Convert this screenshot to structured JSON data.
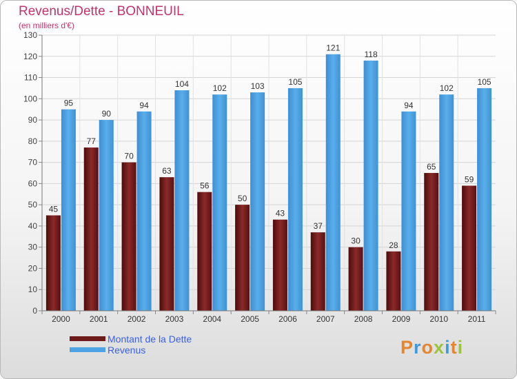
{
  "title": "Revenus/Dette - BONNEUIL",
  "subtitle": "(en milliers d'€)",
  "logo": "Proxiti",
  "colors": {
    "dette": "#6e1a1a",
    "revenus": "#4da3e3",
    "title": "#c0336b",
    "legend_text": "#3a5fe0"
  },
  "chart_data": {
    "type": "bar",
    "categories": [
      "2000",
      "2001",
      "2002",
      "2003",
      "2004",
      "2005",
      "2006",
      "2007",
      "2008",
      "2009",
      "2010",
      "2011"
    ],
    "series": [
      {
        "name": "Montant de la Dette",
        "values": [
          45,
          77,
          70,
          63,
          56,
          50,
          43,
          37,
          30,
          28,
          65,
          59
        ]
      },
      {
        "name": "Revenus",
        "values": [
          95,
          90,
          94,
          104,
          102,
          103,
          105,
          121,
          118,
          94,
          102,
          105
        ]
      }
    ],
    "ylim": [
      0,
      130
    ],
    "yticks": [
      0,
      10,
      20,
      30,
      40,
      50,
      60,
      70,
      80,
      90,
      100,
      110,
      120,
      130
    ],
    "grid": true,
    "legend_position": "bottom-left"
  }
}
